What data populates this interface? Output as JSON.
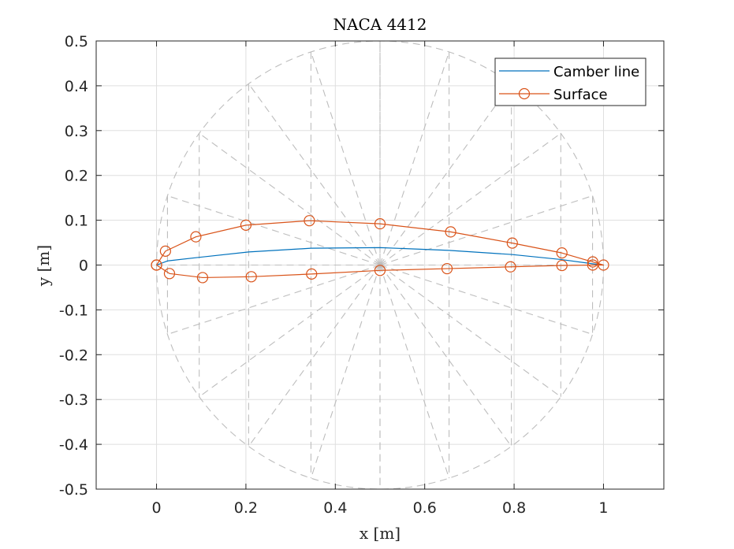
{
  "chart_data": {
    "type": "line",
    "title": "NACA 4412",
    "xlabel": "x [m]",
    "ylabel": "y [m]",
    "xlim": [
      -0.135,
      1.135
    ],
    "ylim": [
      -0.5,
      0.5
    ],
    "xticks": [
      0,
      0.2,
      0.4,
      0.6,
      0.8,
      1
    ],
    "xtick_labels": [
      "0",
      "0.2",
      "0.4",
      "0.6",
      "0.8",
      "1"
    ],
    "yticks": [
      0.5,
      0.4,
      0.3,
      0.2,
      0.1,
      0,
      -0.1,
      -0.2,
      -0.3,
      -0.4,
      -0.5
    ],
    "ytick_labels": [
      "0.5",
      "0.4",
      "0.3",
      "0.2",
      "0.1",
      "0",
      "-0.1",
      "-0.2",
      "-0.3",
      "-0.4",
      "-0.5"
    ],
    "grid": true,
    "legend_position": "top-right",
    "colors": {
      "camber": "#0072BD",
      "surface": "#D95319",
      "construction": "#BDBDBD",
      "grid": "#DFDFDF"
    },
    "series": [
      {
        "name": "Camber line",
        "x": [
          0,
          0.0245,
          0.0955,
          0.2061,
          0.3455,
          0.5,
          0.6545,
          0.7939,
          0.9045,
          0.9755,
          1
        ],
        "y": [
          0,
          0.0092,
          0.0172,
          0.0292,
          0.0375,
          0.0389,
          0.0328,
          0.0236,
          0.0124,
          0.0029,
          0
        ]
      },
      {
        "name": "Surface",
        "marker": "circle",
        "x": [
          0,
          0.02,
          0.088,
          0.2,
          0.342,
          0.5,
          0.658,
          0.796,
          0.907,
          0.976,
          1.0,
          0.976,
          0.907,
          0.792,
          0.65,
          0.5,
          0.347,
          0.212,
          0.103,
          0.029,
          0
        ],
        "y": [
          0,
          0.031,
          0.063,
          0.089,
          0.099,
          0.092,
          0.074,
          0.049,
          0.027,
          0.007,
          0,
          0.0,
          -0.001,
          -0.004,
          -0.008,
          -0.012,
          -0.02,
          -0.026,
          -0.028,
          -0.019,
          0
        ]
      }
    ],
    "construction": {
      "circle": {
        "center": [
          0.5,
          0
        ],
        "radius": 0.5
      },
      "ticks_x": [
        0.0245,
        0.0955,
        0.2061,
        0.3455,
        0.5,
        0.6545,
        0.7939,
        0.9045,
        0.9755
      ]
    }
  }
}
